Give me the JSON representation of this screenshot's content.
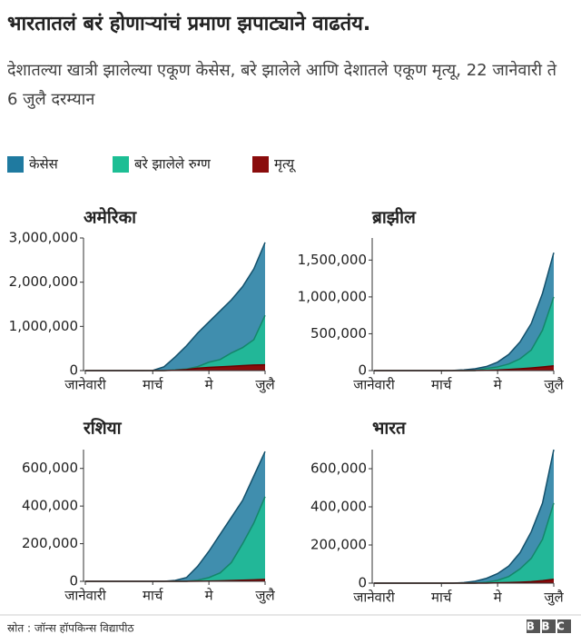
{
  "title": "भारतातलं बरं होणाऱ्यांचं प्रमाण झपाट्याने वाढतंय.",
  "subtitle": "देशातल्या खात्री झालेल्या एकूण केसेस, बरे झालेले आणि देशातले एकूण मृत्यू, 22 जानेवारी ते 6 जुलै दरम्यान",
  "legend": [
    {
      "name": "केसेस",
      "color": "#1f7aa0"
    },
    {
      "name": "बरे झालेले रुग्ण",
      "color": "#1dbe94"
    },
    {
      "name": "मृत्यू",
      "color": "#8a0c0c"
    }
  ],
  "chart_data": [
    {
      "type": "area",
      "title": "अमेरिका",
      "categories": [
        "जानेवारी",
        null,
        null,
        null,
        null,
        null,
        "मार्च",
        null,
        null,
        null,
        null,
        "मे",
        null,
        null,
        null,
        null,
        "जुलै"
      ],
      "ylim": [
        0,
        3000000
      ],
      "yticks": [
        0,
        {
          "value": 1000000,
          "label": "1,000,000"
        },
        {
          "value": 2000000,
          "label": "2,000,000"
        },
        {
          "value": 3000000,
          "label": "3,000,000"
        }
      ],
      "series": [
        {
          "values": [
            0,
            0,
            0,
            0,
            0,
            0,
            3500,
            85000,
            310000,
            560000,
            850000,
            1100000,
            1350000,
            1600000,
            1900000,
            2300000,
            2900000
          ]
        },
        {
          "values": [
            0,
            0,
            0,
            0,
            0,
            0,
            0,
            1000,
            15000,
            35000,
            90000,
            190000,
            250000,
            400000,
            520000,
            700000,
            1250000
          ]
        },
        {
          "values": [
            0,
            0,
            0,
            0,
            0,
            0,
            0,
            1000,
            8000,
            22000,
            55000,
            72000,
            85000,
            98000,
            112000,
            126000,
            130000
          ]
        }
      ]
    },
    {
      "type": "area",
      "title": "ब्राझील",
      "categories": [
        "जानेवारी",
        null,
        null,
        null,
        null,
        null,
        "मार्च",
        null,
        null,
        null,
        null,
        "मे",
        null,
        null,
        null,
        null,
        "जुलै"
      ],
      "ylim": [
        0,
        1800000
      ],
      "yticks": [
        0,
        {
          "value": 500000,
          "label": "500,000"
        },
        {
          "value": 1000000,
          "label": "1,000,000"
        },
        {
          "value": 1500000,
          "label": "1,500,000"
        }
      ],
      "series": [
        {
          "values": [
            0,
            0,
            0,
            0,
            0,
            0,
            0,
            2000,
            10000,
            25000,
            55000,
            115000,
            220000,
            390000,
            640000,
            1050000,
            1600000
          ]
        },
        {
          "values": [
            0,
            0,
            0,
            0,
            0,
            0,
            0,
            0,
            0,
            200,
            30000,
            50000,
            90000,
            160000,
            280000,
            550000,
            1000000
          ]
        },
        {
          "values": [
            0,
            0,
            0,
            0,
            0,
            0,
            0,
            0,
            400,
            1500,
            3500,
            8000,
            15000,
            25000,
            36000,
            50000,
            65000
          ]
        }
      ]
    },
    {
      "type": "area",
      "title": "रशिया",
      "categories": [
        "जानेवारी",
        null,
        null,
        null,
        null,
        null,
        "मार्च",
        null,
        null,
        null,
        null,
        "मे",
        null,
        null,
        null,
        null,
        "जुलै"
      ],
      "ylim": [
        0,
        700000
      ],
      "yticks": [
        0,
        {
          "value": 200000,
          "label": "200,000"
        },
        {
          "value": 400000,
          "label": "400,000"
        },
        {
          "value": 600000,
          "label": "600,000"
        }
      ],
      "series": [
        {
          "values": [
            0,
            0,
            0,
            0,
            0,
            0,
            0,
            0,
            5000,
            20000,
            80000,
            160000,
            250000,
            340000,
            430000,
            560000,
            690000
          ]
        },
        {
          "values": [
            0,
            0,
            0,
            0,
            0,
            0,
            0,
            0,
            0,
            0,
            6000,
            20000,
            45000,
            100000,
            200000,
            310000,
            450000
          ]
        },
        {
          "values": [
            0,
            0,
            0,
            0,
            0,
            0,
            0,
            0,
            0,
            0,
            700,
            1500,
            2700,
            4000,
            6000,
            8000,
            10000
          ]
        }
      ]
    },
    {
      "type": "area",
      "title": "भारत",
      "categories": [
        "जानेवारी",
        null,
        null,
        null,
        null,
        null,
        "मार्च",
        null,
        null,
        null,
        null,
        "मे",
        null,
        null,
        null,
        null,
        "जुलै"
      ],
      "ylim": [
        0,
        700000
      ],
      "yticks": [
        0,
        {
          "value": 200000,
          "label": "200,000"
        },
        {
          "value": 400000,
          "label": "400,000"
        },
        {
          "value": 600000,
          "label": "600,000"
        }
      ],
      "series": [
        {
          "values": [
            0,
            0,
            0,
            0,
            0,
            0,
            0,
            0,
            3000,
            10000,
            25000,
            50000,
            90000,
            160000,
            270000,
            420000,
            700000
          ]
        },
        {
          "values": [
            0,
            0,
            0,
            0,
            0,
            0,
            0,
            0,
            0,
            0,
            5000,
            15000,
            35000,
            75000,
            130000,
            230000,
            420000
          ]
        },
        {
          "values": [
            0,
            0,
            0,
            0,
            0,
            0,
            0,
            0,
            0,
            0,
            0,
            1700,
            3000,
            5000,
            8000,
            13000,
            20000
          ]
        }
      ]
    }
  ],
  "source": "स्रोत : जॉन्स हॉपकिन्स विद्यापीठ",
  "logo": "BBC"
}
